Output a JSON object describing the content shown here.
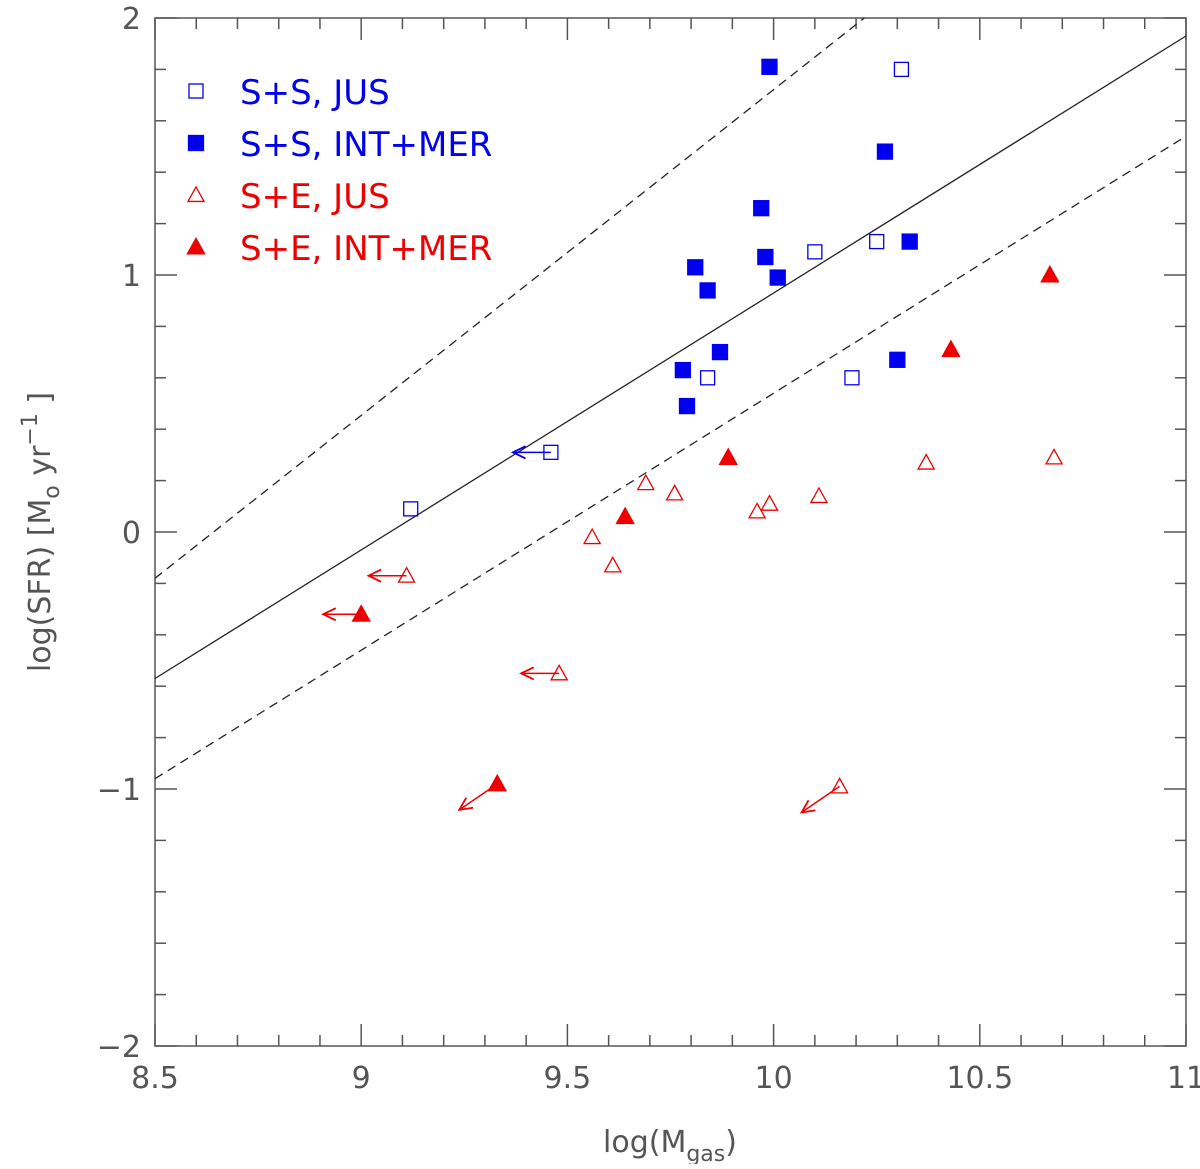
{
  "chart_data": {
    "type": "scatter",
    "title": "",
    "xlabel": {
      "main": "log(M",
      "sub": "gas",
      "close": ")"
    },
    "ylabel": {
      "main": "log(SFR) [M",
      "sub": "o",
      "unit": " yr",
      "sup": "−1",
      "close": " ]"
    },
    "xlim": [
      8.5,
      11
    ],
    "ylim": [
      -2,
      2
    ],
    "xticks": [
      8.5,
      9,
      9.5,
      10,
      10.5,
      11
    ],
    "yticks": [
      -2,
      -1,
      0,
      1,
      2
    ],
    "xtick_labels": [
      "8.5",
      "9",
      "9.5",
      "10",
      "10.5",
      "11"
    ],
    "ytick_labels": [
      "−2",
      "−1",
      "0",
      "1",
      "2"
    ],
    "x_minor_step": 0.1,
    "y_minor_step": 0.2,
    "legend_position": "top-left",
    "colors": {
      "blue": "#0000ee",
      "red": "#ee0000",
      "axis": "#555555",
      "line": "#222222"
    },
    "lines": [
      {
        "name": "fit",
        "style": "solid",
        "x": [
          8.5,
          11
        ],
        "y": [
          -0.57,
          1.93
        ]
      },
      {
        "name": "upper",
        "style": "dashed",
        "x": [
          8.5,
          10.22
        ],
        "y": [
          -0.18,
          2.0
        ]
      },
      {
        "name": "lower",
        "style": "dashed",
        "x": [
          8.5,
          11
        ],
        "y": [
          -0.96,
          1.54
        ]
      }
    ],
    "series": [
      {
        "name": "S+S, JUS",
        "marker": "square",
        "filled": false,
        "color": "#0000ee",
        "points": [
          {
            "x": 9.12,
            "y": 0.09
          },
          {
            "x": 9.46,
            "y": 0.31,
            "upper_limit": true
          },
          {
            "x": 9.84,
            "y": 0.6
          },
          {
            "x": 10.1,
            "y": 1.09
          },
          {
            "x": 10.19,
            "y": 0.6
          },
          {
            "x": 10.25,
            "y": 1.13
          },
          {
            "x": 10.31,
            "y": 1.8
          }
        ]
      },
      {
        "name": "S+S, INT+MER",
        "marker": "square",
        "filled": true,
        "color": "#0000ee",
        "points": [
          {
            "x": 9.78,
            "y": 0.63
          },
          {
            "x": 9.79,
            "y": 0.49
          },
          {
            "x": 9.81,
            "y": 1.03
          },
          {
            "x": 9.84,
            "y": 0.94
          },
          {
            "x": 9.87,
            "y": 0.7
          },
          {
            "x": 9.97,
            "y": 1.26
          },
          {
            "x": 9.98,
            "y": 1.07
          },
          {
            "x": 9.99,
            "y": 1.81
          },
          {
            "x": 10.01,
            "y": 0.99
          },
          {
            "x": 10.27,
            "y": 1.48
          },
          {
            "x": 10.3,
            "y": 0.67
          },
          {
            "x": 10.33,
            "y": 1.13
          }
        ]
      },
      {
        "name": "S+E, JUS",
        "marker": "triangle",
        "filled": false,
        "color": "#ee0000",
        "points": [
          {
            "x": 9.11,
            "y": -0.17,
            "upper_limit": true
          },
          {
            "x": 9.48,
            "y": -0.55,
            "upper_limit": true
          },
          {
            "x": 9.56,
            "y": -0.02
          },
          {
            "x": 9.61,
            "y": -0.13
          },
          {
            "x": 9.69,
            "y": 0.19
          },
          {
            "x": 9.76,
            "y": 0.15
          },
          {
            "x": 9.96,
            "y": 0.08
          },
          {
            "x": 9.99,
            "y": 0.11
          },
          {
            "x": 10.11,
            "y": 0.14
          },
          {
            "x": 10.16,
            "y": -0.99,
            "upper_limit": true,
            "diagonal": true
          },
          {
            "x": 10.37,
            "y": 0.27
          },
          {
            "x": 10.68,
            "y": 0.29
          }
        ]
      },
      {
        "name": "S+E, INT+MER",
        "marker": "triangle",
        "filled": true,
        "color": "#ee0000",
        "points": [
          {
            "x": 9.0,
            "y": -0.32,
            "upper_limit": true
          },
          {
            "x": 9.33,
            "y": -0.98,
            "upper_limit": true,
            "diagonal": true
          },
          {
            "x": 9.64,
            "y": 0.06
          },
          {
            "x": 9.89,
            "y": 0.29
          },
          {
            "x": 10.43,
            "y": 0.71
          },
          {
            "x": 10.67,
            "y": 1.0
          }
        ]
      }
    ]
  }
}
